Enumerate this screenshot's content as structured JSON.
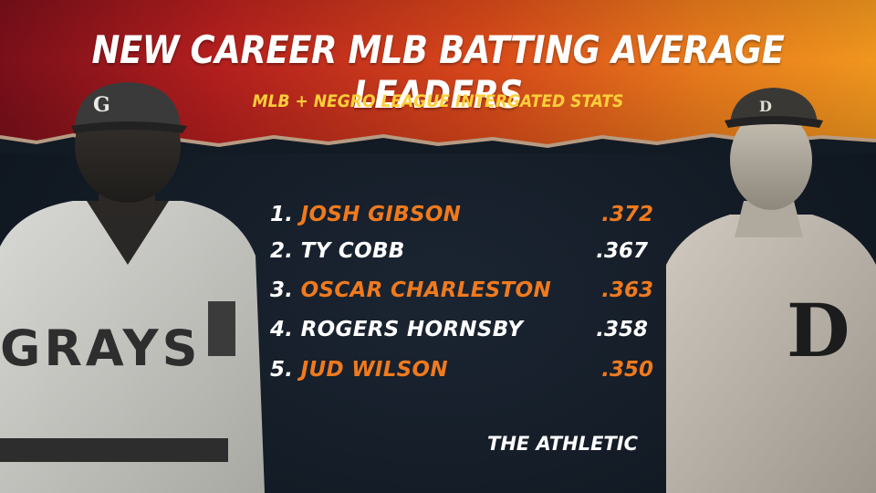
{
  "header": {
    "title": "NEW CAREER MLB BATTING AVERAGE LEADERS",
    "subtitle": "MLB + NEGRO LEAGUE INTERGATED STATS"
  },
  "leaders": [
    {
      "rank": "1.",
      "name": "JOSH GIBSON",
      "avg": ".372",
      "highlight": true
    },
    {
      "rank": "2.",
      "name": "TY COBB",
      "avg": ".367",
      "highlight": false
    },
    {
      "rank": "3.",
      "name": "OSCAR CHARLESTON",
      "avg": ".363",
      "highlight": true
    },
    {
      "rank": "4.",
      "name": "ROGERS HORNSBY",
      "avg": ".358",
      "highlight": false
    },
    {
      "rank": "5.",
      "name": "JUD WILSON",
      "avg": ".350",
      "highlight": true
    }
  ],
  "left_player": {
    "cap_letter": "G",
    "jersey_text": "GRAYS"
  },
  "right_player": {
    "cap_letter": "D",
    "jersey_letter": "D"
  },
  "credit": "THE ATHLETIC",
  "colors": {
    "highlight": "#f07a1e",
    "subtitle": "#ffcf3a",
    "background": "#121a24"
  }
}
